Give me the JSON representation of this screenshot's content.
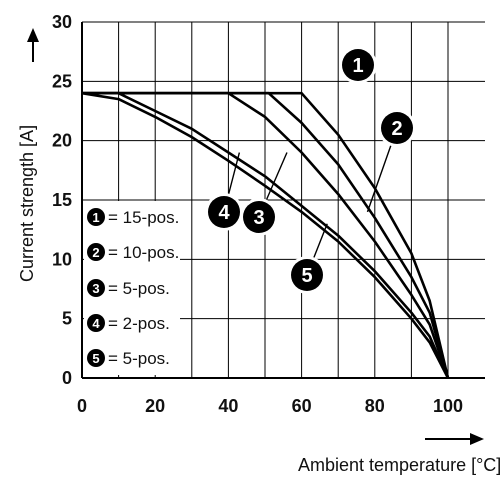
{
  "chart_data": {
    "type": "line",
    "xlabel": "Ambient temperature [°C]",
    "ylabel": "Current strength [A]",
    "xlim": [
      0,
      100
    ],
    "ylim": [
      0,
      30
    ],
    "xticks": [
      0,
      20,
      40,
      60,
      80,
      100
    ],
    "yticks": [
      0,
      5,
      10,
      15,
      20,
      25,
      30
    ],
    "grid": true,
    "legend_position": "left",
    "series": [
      {
        "id": "1",
        "name": "15-pos.",
        "x": [
          0,
          60,
          70,
          80,
          90,
          95,
          100
        ],
        "y": [
          24,
          24,
          20.5,
          16,
          10.5,
          6.5,
          0
        ]
      },
      {
        "id": "2",
        "name": "10-pos.",
        "x": [
          0,
          51,
          60,
          70,
          80,
          90,
          95,
          100
        ],
        "y": [
          24,
          24,
          21.5,
          18,
          13.5,
          8.5,
          5.5,
          0
        ]
      },
      {
        "id": "3",
        "name": "5-pos.",
        "x": [
          0,
          40,
          50,
          60,
          70,
          80,
          90,
          95,
          100
        ],
        "y": [
          24,
          24,
          22,
          19,
          15.5,
          11.5,
          7,
          4.5,
          0
        ]
      },
      {
        "id": "4",
        "name": "2-pos.",
        "x": [
          0,
          10,
          20,
          30,
          40,
          50,
          60,
          70,
          80,
          90,
          95,
          100
        ],
        "y": [
          24,
          24,
          22.5,
          21,
          19,
          17,
          14.5,
          12,
          9,
          5.5,
          3.5,
          0
        ]
      },
      {
        "id": "5",
        "name": "5-pos.",
        "x": [
          0,
          10,
          20,
          30,
          40,
          50,
          60,
          70,
          80,
          90,
          95,
          100
        ],
        "y": [
          24,
          23.5,
          22,
          20.3,
          18.3,
          16.2,
          14,
          11.5,
          8.5,
          5,
          3,
          0
        ]
      }
    ],
    "legend": [
      {
        "id": "1",
        "label": "= 15-pos."
      },
      {
        "id": "2",
        "label": "= 10-pos."
      },
      {
        "id": "3",
        "label": "= 5-pos."
      },
      {
        "id": "4",
        "label": "= 2-pos."
      },
      {
        "id": "5",
        "label": "= 5-pos."
      }
    ],
    "callouts": [
      {
        "id": "1",
        "points_to": [
          73,
          26
        ]
      },
      {
        "id": "2",
        "points_to": [
          78,
          14
        ]
      },
      {
        "id": "3",
        "points_to": [
          56,
          19
        ]
      },
      {
        "id": "4",
        "points_to": [
          43,
          19
        ]
      },
      {
        "id": "5",
        "points_to": [
          67,
          13
        ]
      }
    ],
    "colors": {
      "line": "#000000",
      "grid": "#000000",
      "badge": "#000000",
      "badge_text": "#ffffff"
    }
  }
}
